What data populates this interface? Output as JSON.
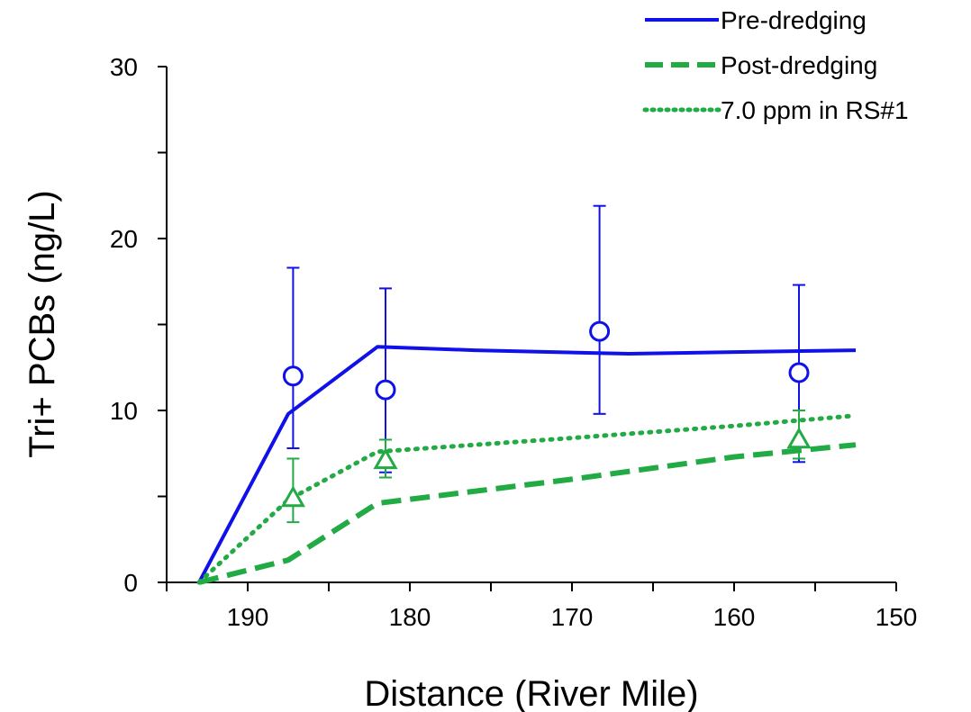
{
  "chart_data": {
    "type": "line",
    "xlabel": "Distance (River Mile)",
    "ylabel": "Tri+ PCBs (ng/L)",
    "xlim": [
      195,
      150
    ],
    "ylim": [
      0,
      30
    ],
    "x_axis_reversed": true,
    "x_ticks": [
      190,
      180,
      170,
      160,
      150
    ],
    "x_tick_labels": [
      "190",
      "180",
      "170",
      "160",
      "150"
    ],
    "y_ticks": [
      0,
      10,
      20,
      30
    ],
    "y_tick_labels": [
      "0",
      "10",
      "20",
      "30"
    ],
    "grid": false,
    "legend_position": "top-right",
    "series": [
      {
        "name": "Pre-dredging",
        "style": "solid",
        "color": "#1010e8",
        "x": [
          193.0,
          187.5,
          182.0,
          176.0,
          166.5,
          160.0,
          152.5
        ],
        "values": [
          0.0,
          9.8,
          13.7,
          13.5,
          13.3,
          13.4,
          13.5
        ]
      },
      {
        "name": "Post-dredging",
        "style": "dashed",
        "color": "#22aa44",
        "x": [
          193.0,
          187.5,
          182.0,
          170.0,
          160.0,
          152.5
        ],
        "values": [
          0.0,
          1.3,
          4.6,
          6.0,
          7.3,
          8.0
        ]
      },
      {
        "name": "7.0 ppm in RS#1",
        "style": "dotted",
        "color": "#22aa44",
        "x": [
          193.0,
          187.5,
          182.0,
          170.0,
          160.0,
          152.5
        ],
        "values": [
          0.0,
          4.8,
          7.6,
          8.4,
          9.1,
          9.7
        ]
      }
    ],
    "observations": [
      {
        "group": "pre-dredging",
        "marker": "circle",
        "color": "#1010e8",
        "points": [
          {
            "x": 187.2,
            "y": 12.0,
            "err_low": 7.8,
            "err_high": 18.3
          },
          {
            "x": 181.5,
            "y": 11.2,
            "err_low": 6.4,
            "err_high": 17.1
          },
          {
            "x": 168.3,
            "y": 14.6,
            "err_low": 9.8,
            "err_high": 21.9
          },
          {
            "x": 156.0,
            "y": 12.2,
            "err_low": 7.0,
            "err_high": 17.3
          }
        ]
      },
      {
        "group": "post-dredging",
        "marker": "triangle",
        "color": "#22aa44",
        "points": [
          {
            "x": 187.2,
            "y": 4.9,
            "err_low": 3.5,
            "err_high": 7.2
          },
          {
            "x": 181.5,
            "y": 7.1,
            "err_low": 6.1,
            "err_high": 8.3
          },
          {
            "x": 156.0,
            "y": 8.3,
            "err_low": 7.2,
            "err_high": 10.0
          }
        ]
      }
    ]
  }
}
